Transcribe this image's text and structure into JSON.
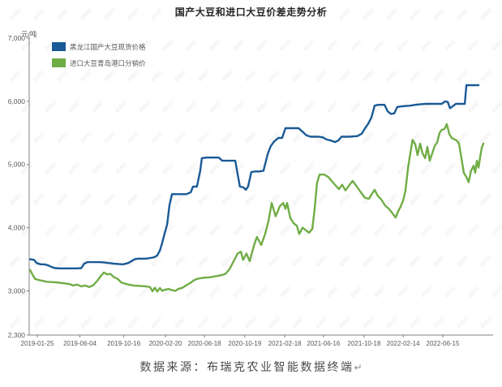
{
  "title": "国产大豆和进口大豆价差走势分析",
  "caption": {
    "text": "数据来源：布瑞克农业智能数据终端",
    "return_mark": "↵"
  },
  "watermark": {
    "text": "BRIC",
    "color": "#f0f0f0"
  },
  "chart_data": {
    "type": "line",
    "title": "国产大豆和进口大豆价差走势分析",
    "ylabel": "元/吨",
    "xlabel": "",
    "grid": false,
    "legend_position": "top-left-inside",
    "ylim": [
      2300,
      7000
    ],
    "y_ticks": [
      7000,
      6000,
      5000,
      4000,
      3000,
      2300
    ],
    "y_tick_labels": [
      "7,000",
      "6,000",
      "5,000",
      "4,000",
      "3,000",
      "2,300"
    ],
    "x_tick_labels": [
      "2019-01-25",
      "2019-06-04",
      "2019-10-16",
      "2020-02-20",
      "2020-06-18",
      "2020-10-19",
      "2021-02-18",
      "2021-06-16",
      "2021-10-18",
      "2022-02-14",
      "2022-06-15"
    ],
    "x_tick_days": [
      0,
      130,
      264,
      391,
      510,
      633,
      755,
      873,
      997,
      1116,
      1237
    ],
    "x_unit_note": "days since 2019-01-25",
    "series": [
      {
        "name": "黑龙江国产大豆现货价格",
        "color": "#1a5a96",
        "points": [
          [
            -22,
            3500
          ],
          [
            -10,
            3490
          ],
          [
            -2,
            3440
          ],
          [
            10,
            3420
          ],
          [
            22,
            3420
          ],
          [
            35,
            3400
          ],
          [
            42,
            3380
          ],
          [
            54,
            3360
          ],
          [
            72,
            3355
          ],
          [
            96,
            3355
          ],
          [
            121,
            3355
          ],
          [
            134,
            3360
          ],
          [
            143,
            3430
          ],
          [
            153,
            3455
          ],
          [
            171,
            3455
          ],
          [
            188,
            3455
          ],
          [
            203,
            3450
          ],
          [
            218,
            3440
          ],
          [
            233,
            3430
          ],
          [
            247,
            3425
          ],
          [
            262,
            3420
          ],
          [
            277,
            3440
          ],
          [
            287,
            3470
          ],
          [
            297,
            3500
          ],
          [
            307,
            3510
          ],
          [
            319,
            3510
          ],
          [
            332,
            3510
          ],
          [
            344,
            3520
          ],
          [
            356,
            3530
          ],
          [
            366,
            3560
          ],
          [
            374,
            3640
          ],
          [
            381,
            3760
          ],
          [
            388,
            3900
          ],
          [
            396,
            4050
          ],
          [
            403,
            4350
          ],
          [
            411,
            4530
          ],
          [
            426,
            4530
          ],
          [
            440,
            4530
          ],
          [
            455,
            4530
          ],
          [
            468,
            4560
          ],
          [
            475,
            4650
          ],
          [
            487,
            4650
          ],
          [
            497,
            4900
          ],
          [
            502,
            5100
          ],
          [
            517,
            5110
          ],
          [
            542,
            5110
          ],
          [
            554,
            5110
          ],
          [
            564,
            5060
          ],
          [
            579,
            5060
          ],
          [
            594,
            5060
          ],
          [
            604,
            5060
          ],
          [
            611,
            4850
          ],
          [
            618,
            4650
          ],
          [
            628,
            4640
          ],
          [
            636,
            4600
          ],
          [
            643,
            4650
          ],
          [
            653,
            4880
          ],
          [
            665,
            4890
          ],
          [
            678,
            4890
          ],
          [
            690,
            4900
          ],
          [
            703,
            5170
          ],
          [
            712,
            5290
          ],
          [
            722,
            5360
          ],
          [
            735,
            5420
          ],
          [
            747,
            5420
          ],
          [
            757,
            5575
          ],
          [
            782,
            5575
          ],
          [
            797,
            5575
          ],
          [
            809,
            5520
          ],
          [
            821,
            5460
          ],
          [
            834,
            5440
          ],
          [
            858,
            5440
          ],
          [
            871,
            5430
          ],
          [
            883,
            5395
          ],
          [
            896,
            5380
          ],
          [
            908,
            5355
          ],
          [
            918,
            5380
          ],
          [
            928,
            5440
          ],
          [
            952,
            5440
          ],
          [
            977,
            5450
          ],
          [
            990,
            5490
          ],
          [
            1000,
            5575
          ],
          [
            1009,
            5640
          ],
          [
            1019,
            5740
          ],
          [
            1029,
            5930
          ],
          [
            1039,
            5945
          ],
          [
            1059,
            5945
          ],
          [
            1069,
            5840
          ],
          [
            1079,
            5800
          ],
          [
            1089,
            5810
          ],
          [
            1098,
            5910
          ],
          [
            1111,
            5920
          ],
          [
            1136,
            5930
          ],
          [
            1160,
            5950
          ],
          [
            1185,
            5960
          ],
          [
            1222,
            5960
          ],
          [
            1234,
            5960
          ],
          [
            1244,
            6000
          ],
          [
            1252,
            5990
          ],
          [
            1259,
            5890
          ],
          [
            1267,
            5920
          ],
          [
            1277,
            5960
          ],
          [
            1296,
            5960
          ],
          [
            1304,
            5960
          ],
          [
            1309,
            6255
          ],
          [
            1346,
            6255
          ]
        ]
      },
      {
        "name": "进口大豆青岛港口分销价",
        "color": "#6fad45",
        "points": [
          [
            -22,
            3330
          ],
          [
            -15,
            3260
          ],
          [
            -7,
            3190
          ],
          [
            2,
            3175
          ],
          [
            15,
            3160
          ],
          [
            27,
            3145
          ],
          [
            40,
            3140
          ],
          [
            59,
            3135
          ],
          [
            79,
            3120
          ],
          [
            96,
            3110
          ],
          [
            109,
            3085
          ],
          [
            121,
            3100
          ],
          [
            134,
            3070
          ],
          [
            146,
            3085
          ],
          [
            158,
            3060
          ],
          [
            171,
            3090
          ],
          [
            183,
            3160
          ],
          [
            193,
            3230
          ],
          [
            203,
            3290
          ],
          [
            213,
            3260
          ],
          [
            223,
            3270
          ],
          [
            233,
            3220
          ],
          [
            245,
            3190
          ],
          [
            257,
            3130
          ],
          [
            270,
            3110
          ],
          [
            282,
            3095
          ],
          [
            294,
            3085
          ],
          [
            307,
            3080
          ],
          [
            319,
            3075
          ],
          [
            332,
            3070
          ],
          [
            344,
            3060
          ],
          [
            351,
            2995
          ],
          [
            359,
            3050
          ],
          [
            366,
            2990
          ],
          [
            374,
            3045
          ],
          [
            381,
            3000
          ],
          [
            391,
            3020
          ],
          [
            401,
            3030
          ],
          [
            411,
            3010
          ],
          [
            421,
            3000
          ],
          [
            430,
            3030
          ],
          [
            443,
            3050
          ],
          [
            455,
            3090
          ],
          [
            468,
            3130
          ],
          [
            480,
            3175
          ],
          [
            492,
            3195
          ],
          [
            505,
            3205
          ],
          [
            517,
            3210
          ],
          [
            529,
            3215
          ],
          [
            542,
            3230
          ],
          [
            554,
            3240
          ],
          [
            567,
            3255
          ],
          [
            574,
            3270
          ],
          [
            586,
            3340
          ],
          [
            599,
            3470
          ],
          [
            611,
            3590
          ],
          [
            621,
            3620
          ],
          [
            628,
            3490
          ],
          [
            638,
            3590
          ],
          [
            648,
            3470
          ],
          [
            661,
            3720
          ],
          [
            670,
            3854
          ],
          [
            683,
            3725
          ],
          [
            695,
            3900
          ],
          [
            705,
            4100
          ],
          [
            715,
            4390
          ],
          [
            727,
            4180
          ],
          [
            740,
            4340
          ],
          [
            750,
            4390
          ],
          [
            757,
            4300
          ],
          [
            762,
            4390
          ],
          [
            772,
            4150
          ],
          [
            782,
            4070
          ],
          [
            792,
            4030
          ],
          [
            799,
            3900
          ],
          [
            809,
            4000
          ],
          [
            819,
            3960
          ],
          [
            829,
            3920
          ],
          [
            839,
            3980
          ],
          [
            846,
            4300
          ],
          [
            853,
            4700
          ],
          [
            861,
            4840
          ],
          [
            876,
            4840
          ],
          [
            888,
            4800
          ],
          [
            901,
            4720
          ],
          [
            913,
            4650
          ],
          [
            920,
            4610
          ],
          [
            930,
            4680
          ],
          [
            940,
            4590
          ],
          [
            950,
            4660
          ],
          [
            962,
            4740
          ],
          [
            975,
            4650
          ],
          [
            987,
            4560
          ],
          [
            1000,
            4470
          ],
          [
            1012,
            4460
          ],
          [
            1019,
            4520
          ],
          [
            1029,
            4600
          ],
          [
            1039,
            4500
          ],
          [
            1049,
            4450
          ],
          [
            1061,
            4350
          ],
          [
            1074,
            4290
          ],
          [
            1086,
            4210
          ],
          [
            1093,
            4160
          ],
          [
            1101,
            4260
          ],
          [
            1108,
            4330
          ],
          [
            1116,
            4430
          ],
          [
            1123,
            4580
          ],
          [
            1131,
            4950
          ],
          [
            1138,
            5180
          ],
          [
            1145,
            5390
          ],
          [
            1153,
            5320
          ],
          [
            1160,
            5150
          ],
          [
            1168,
            5330
          ],
          [
            1175,
            5180
          ],
          [
            1183,
            5100
          ],
          [
            1190,
            5280
          ],
          [
            1197,
            5060
          ],
          [
            1205,
            5180
          ],
          [
            1212,
            5290
          ],
          [
            1220,
            5350
          ],
          [
            1227,
            5500
          ],
          [
            1234,
            5550
          ],
          [
            1242,
            5560
          ],
          [
            1249,
            5640
          ],
          [
            1257,
            5480
          ],
          [
            1264,
            5420
          ],
          [
            1272,
            5400
          ],
          [
            1279,
            5380
          ],
          [
            1286,
            5340
          ],
          [
            1294,
            5100
          ],
          [
            1301,
            4870
          ],
          [
            1309,
            4800
          ],
          [
            1316,
            4720
          ],
          [
            1323,
            4900
          ],
          [
            1331,
            4980
          ],
          [
            1336,
            4870
          ],
          [
            1341,
            5060
          ],
          [
            1346,
            4950
          ],
          [
            1351,
            5120
          ],
          [
            1356,
            5270
          ],
          [
            1361,
            5330
          ]
        ]
      }
    ]
  }
}
